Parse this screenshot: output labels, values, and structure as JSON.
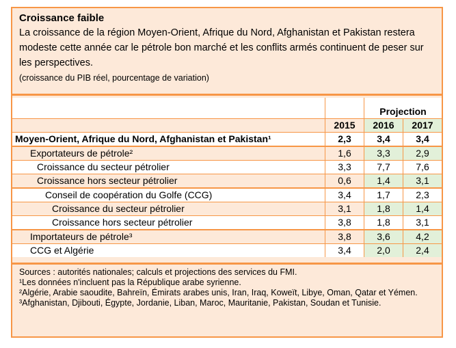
{
  "header": {
    "title": "Croissance faible",
    "description": "La croissance de la région Moyen-Orient, Afrique du Nord, Afghanistan et Pakistan restera modeste cette année car le pétrole bon marché et les conflits armés continuent de peser sur les perspectives.",
    "units": "(croissance du PIB réel, pourcentage de variation)"
  },
  "table": {
    "projection_label": "Projection",
    "years": [
      "2015",
      "2016",
      "2017"
    ],
    "rows": [
      {
        "label": "Moyen-Orient, Afrique du Nord, Afghanistan et Pakistan¹",
        "values": [
          "2,3",
          "3,4",
          "3,4"
        ]
      },
      {
        "label": "Exportateurs de pétrole²",
        "values": [
          "1,6",
          "3,3",
          "2,9"
        ]
      },
      {
        "label": "Croissance du secteur pétrolier",
        "values": [
          "3,3",
          "7,7",
          "7,6"
        ]
      },
      {
        "label": "Croissance hors secteur pétrolier",
        "values": [
          "0,6",
          "1,4",
          "3,1"
        ]
      },
      {
        "label": "Conseil de coopération du Golfe (CCG)",
        "values": [
          "3,4",
          "1,7",
          "2,3"
        ]
      },
      {
        "label": "Croissance du secteur pétrolier",
        "values": [
          "3,1",
          "1,8",
          "1,4"
        ]
      },
      {
        "label": "Croissance hors secteur pétrolier",
        "values": [
          "3,8",
          "1,8",
          "3,1"
        ]
      },
      {
        "label": "Importateurs de pétrole³",
        "values": [
          "3,8",
          "3,6",
          "4,2"
        ]
      },
      {
        "label": "CCG et Algérie",
        "values": [
          "3,4",
          "2,0",
          "2,4"
        ]
      }
    ]
  },
  "footer": [
    "Sources : autorités nationales; calculs et projections des services du FMI.",
    "¹Les données n'incluent pas la République arabe syrienne.",
    "²Algérie, Arabie saoudite, Bahreïn, Émirats arabes unis, Iran, Iraq, Koweït, Libye, Oman, Qatar et Yémen.",
    "³Afghanistan, Djibouti, Égypte, Jordanie, Liban, Maroc, Mauritanie, Pakistan, Soudan et Tunisie."
  ],
  "colors": {
    "border": "#f79646",
    "peach": "#fde9d9",
    "green": "#e2f0d9"
  }
}
